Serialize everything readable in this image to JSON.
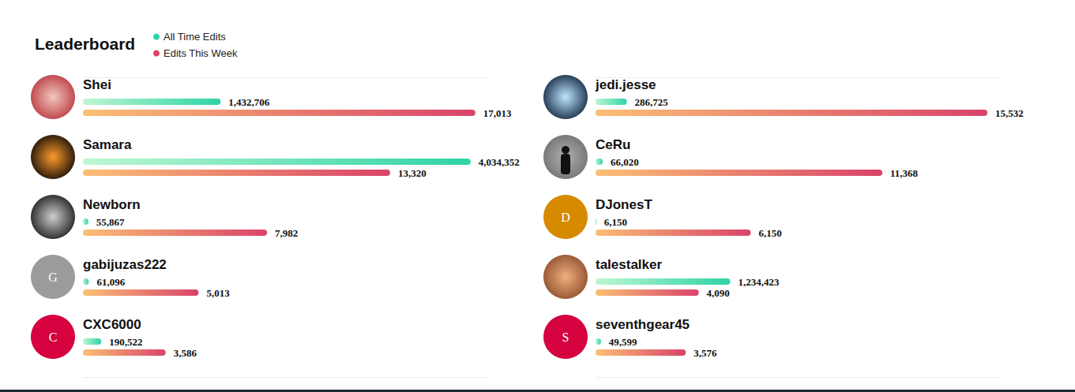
{
  "chart_data": [
    {
      "type": "bar",
      "title": "Leaderboard",
      "orientation": "horizontal",
      "legend": "top-left",
      "data_labels": true,
      "tick_labels": false,
      "grid": false,
      "categories": [
        "Shei",
        "Samara",
        "Newborn",
        "gabijuzas222",
        "CXC6000"
      ],
      "avatar_letters": [
        null,
        null,
        null,
        "G",
        "C"
      ],
      "series": [
        {
          "name": "All Time Edits",
          "color": "#2ed3a6",
          "values": [
            1432706,
            4034352,
            55867,
            61096,
            190522
          ],
          "value_labels": [
            "1,432,706",
            "4,034,352",
            "55,867",
            "61,096",
            "190,522"
          ]
        },
        {
          "name": "Edits This Week",
          "color": "#d9436a",
          "axis": "y2",
          "values": [
            17013,
            13320,
            7982,
            5013,
            3586
          ],
          "value_labels": [
            "17,013",
            "13,320",
            "7,982",
            "5,013",
            "3,586"
          ]
        }
      ],
      "ylim": [
        0,
        4200000
      ],
      "y2lim": [
        0,
        17500
      ]
    },
    {
      "type": "bar",
      "orientation": "horizontal",
      "data_labels": true,
      "tick_labels": false,
      "grid": false,
      "categories": [
        "jedi.jesse",
        "CeRu",
        "DJonesT",
        "talestalker",
        "seventhgear45"
      ],
      "avatar_letters": [
        null,
        null,
        "D",
        null,
        "S"
      ],
      "series": [
        {
          "name": "All Time Edits",
          "color": "#2ed3a6",
          "values": [
            286725,
            66020,
            6150,
            1234423,
            49599
          ],
          "value_labels": [
            "286,725",
            "66,020",
            "6,150",
            "1,234,423",
            "49,599"
          ]
        },
        {
          "name": "Edits This Week",
          "color": "#d9436a",
          "axis": "y2",
          "values": [
            15532,
            11368,
            6150,
            4090,
            3576
          ],
          "value_labels": [
            "15,532",
            "11,368",
            "6,150",
            "4,090",
            "3,576"
          ]
        }
      ],
      "ylim": [
        0,
        3700000
      ],
      "y2lim": [
        0,
        16000
      ]
    }
  ]
}
